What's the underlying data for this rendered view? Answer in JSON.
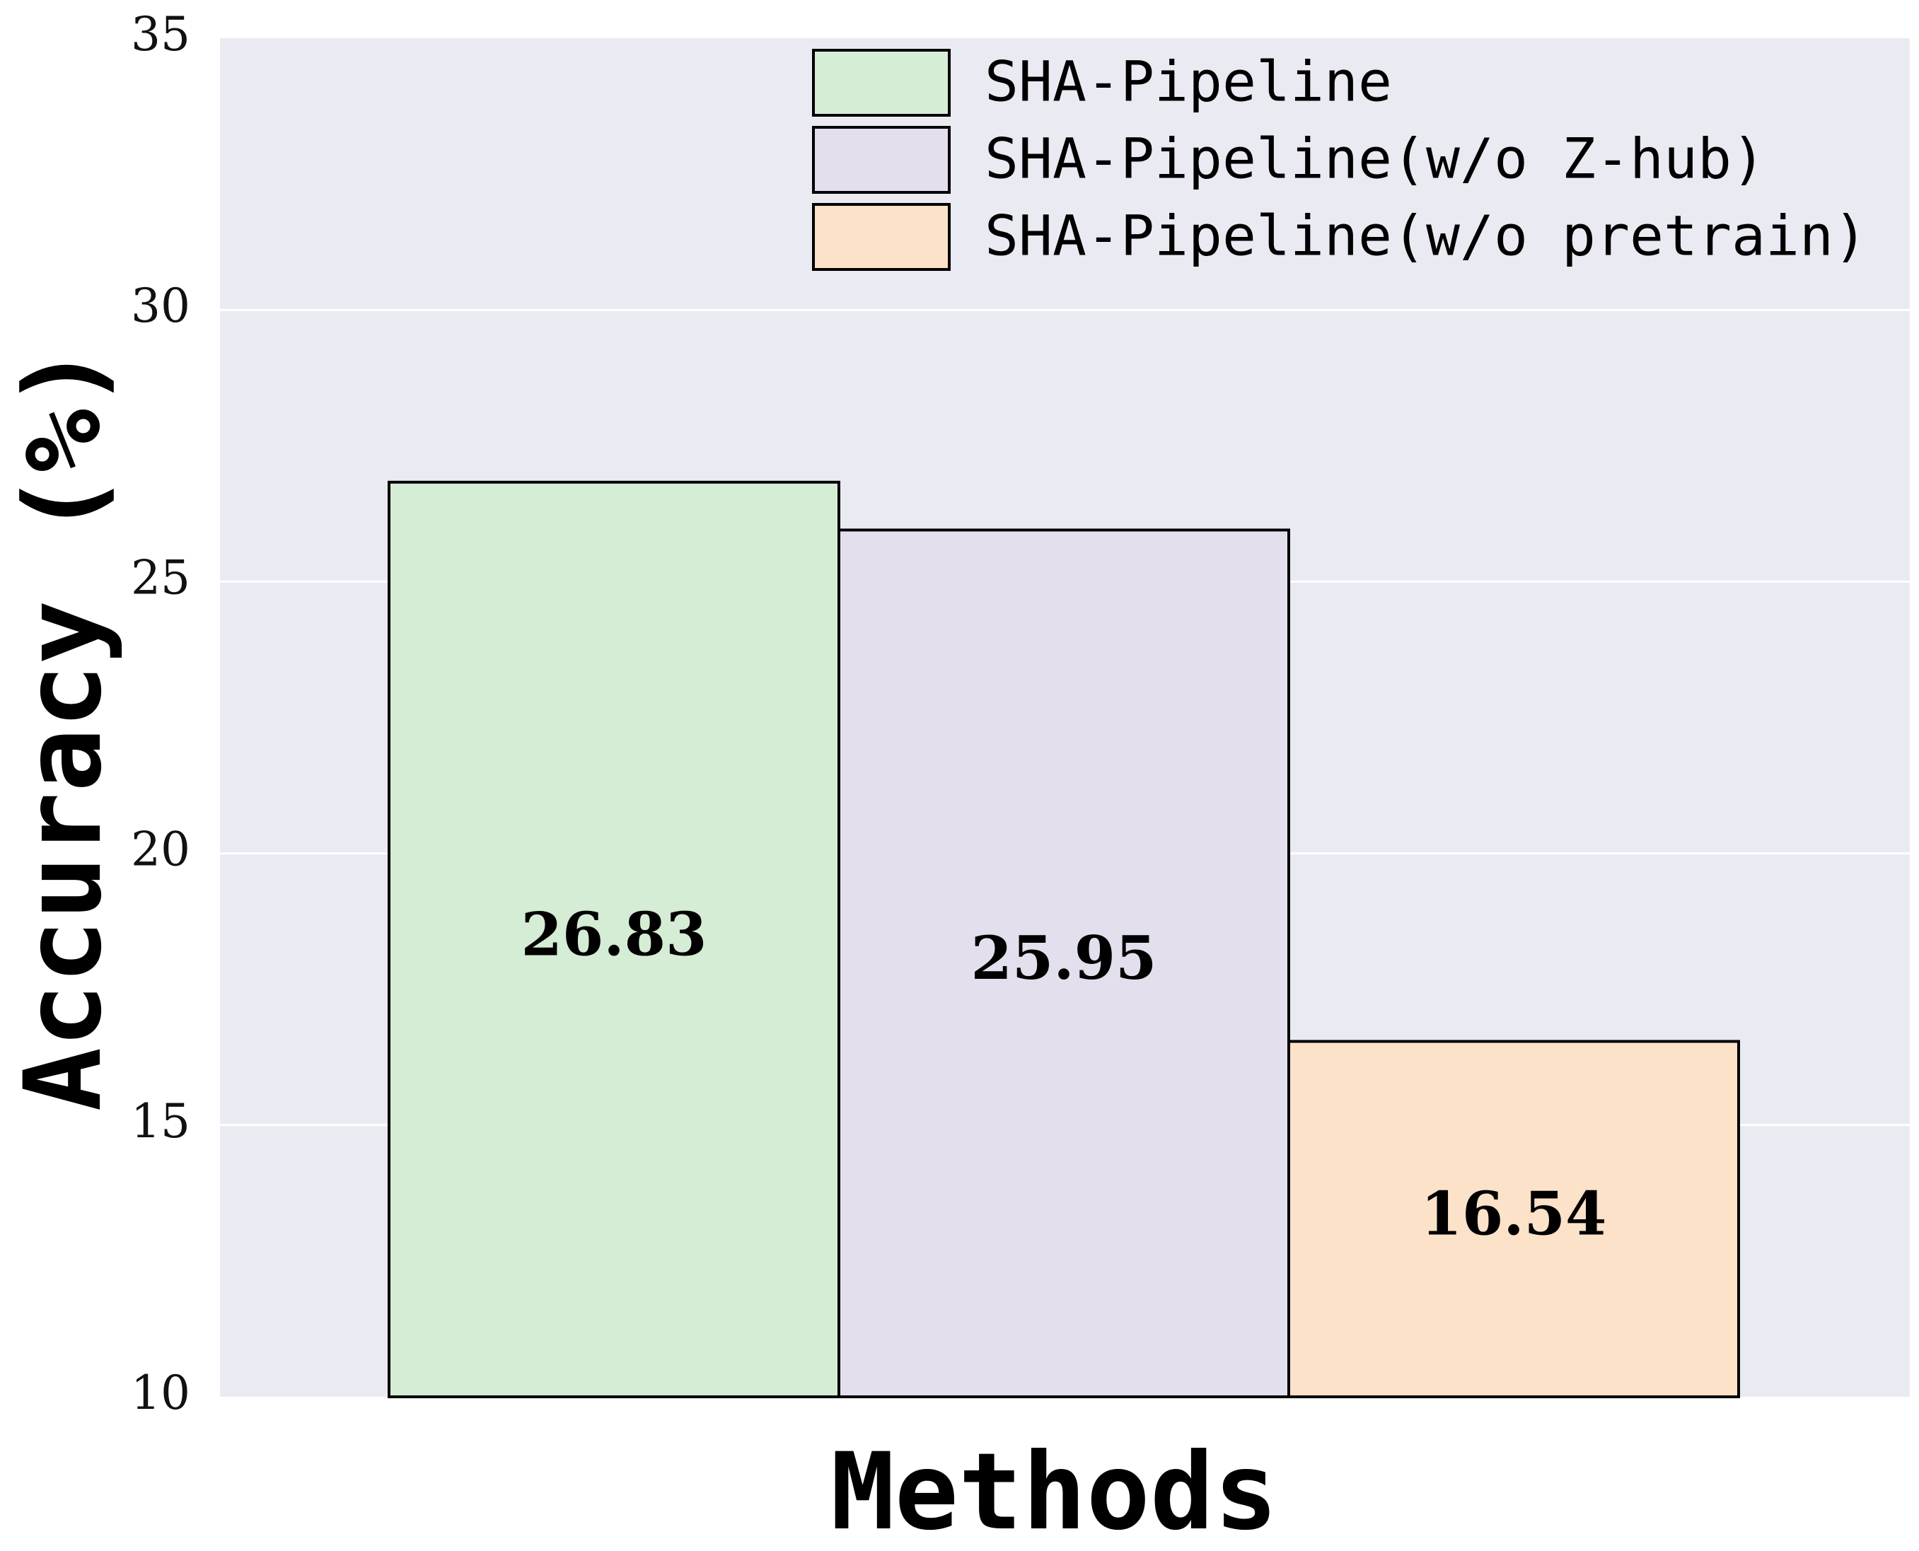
{
  "chart_data": {
    "type": "bar",
    "categories": [
      "SHA-Pipeline",
      "SHA-Pipeline(w/o Z-hub)",
      "SHA-Pipeline(w/o pretrain)"
    ],
    "series": [
      {
        "name": "Accuracy",
        "values": [
          26.83,
          25.95,
          16.54
        ]
      }
    ],
    "value_labels": [
      "26.83",
      "25.95",
      "16.54"
    ],
    "colors": [
      "#d5ecd5",
      "#e3dfec",
      "#fbe2c9"
    ],
    "bar_edge_color": "#000000",
    "plot_background": "#eaeaf2",
    "grid_color": "#ffffff",
    "xlabel": "Methods",
    "ylabel": "Accuracy (%)",
    "ylim": [
      10,
      35
    ],
    "yticks": [
      10,
      15,
      20,
      25,
      30,
      35
    ],
    "ytick_labels": [
      "10",
      "15",
      "20",
      "25",
      "30",
      "35"
    ],
    "grid": true,
    "legend": {
      "placement": "top-right",
      "entries": [
        "SHA-Pipeline",
        "SHA-Pipeline(w/o Z-hub)",
        "SHA-Pipeline(w/o pretrain)"
      ]
    }
  }
}
